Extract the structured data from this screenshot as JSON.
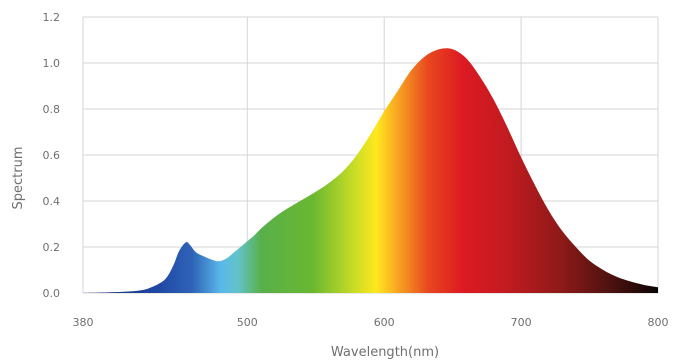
{
  "chart_data": {
    "type": "area",
    "xlabel": "Wavelength(nm)",
    "ylabel": "Spectrum",
    "xlim": [
      380,
      800
    ],
    "ylim": [
      0,
      1.2
    ],
    "x_ticks": [
      380,
      500,
      600,
      700,
      800
    ],
    "y_ticks": [
      0.0,
      0.2,
      0.4,
      0.6,
      0.8,
      1.0,
      1.2
    ],
    "x_tick_labels": [
      "380",
      "500",
      "600",
      "700",
      "800"
    ],
    "y_tick_labels": [
      "0.0",
      "0.2",
      "0.4",
      "0.6",
      "0.8",
      "1.0",
      "1.2"
    ],
    "grid": true,
    "fill": "visible-spectrum gradient (violet/blue through red to black)",
    "series": [
      {
        "x": [
          380,
          400,
          420,
          430,
          440,
          446,
          450,
          455,
          458,
          462,
          466,
          470,
          474,
          478,
          482,
          486,
          490,
          495,
          500,
          505,
          510,
          520,
          530,
          540,
          550,
          560,
          570,
          580,
          590,
          600,
          610,
          620,
          630,
          640,
          650,
          660,
          670,
          680,
          690,
          700,
          710,
          720,
          730,
          740,
          750,
          760,
          770,
          780,
          790,
          800
        ],
        "y": [
          0.0,
          0.003,
          0.01,
          0.025,
          0.06,
          0.12,
          0.18,
          0.22,
          0.21,
          0.18,
          0.165,
          0.155,
          0.145,
          0.138,
          0.142,
          0.155,
          0.175,
          0.2,
          0.225,
          0.25,
          0.28,
          0.33,
          0.37,
          0.405,
          0.44,
          0.48,
          0.53,
          0.6,
          0.69,
          0.79,
          0.88,
          0.97,
          1.03,
          1.06,
          1.06,
          1.02,
          0.94,
          0.84,
          0.72,
          0.59,
          0.47,
          0.36,
          0.27,
          0.2,
          0.14,
          0.1,
          0.07,
          0.05,
          0.035,
          0.025
        ]
      }
    ]
  }
}
